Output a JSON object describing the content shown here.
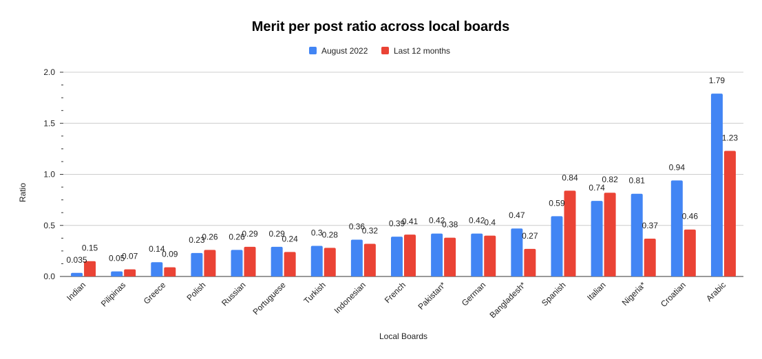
{
  "chart_data": {
    "type": "bar",
    "title": "Merit per post ratio across local boards",
    "xlabel": "Local Boards",
    "ylabel": "Ratio",
    "ylim": [
      0,
      2.0
    ],
    "yticks": [
      "0.0",
      "0.5",
      "1.0",
      "1.5",
      "2.0"
    ],
    "grid": true,
    "legend_position": "top-center",
    "categories": [
      "Indian",
      "Pilipinas",
      "Greece",
      "Polish",
      "Russian",
      "Portuguese",
      "Turkish",
      "Indonesian",
      "French",
      "Pakistan*",
      "German",
      "Bangladesh*",
      "Spanish",
      "Italian",
      "Nigeria*",
      "Croatian",
      "Arabic"
    ],
    "series": [
      {
        "name": "August 2022",
        "color": "#4285f4",
        "values": [
          0.035,
          0.05,
          0.14,
          0.23,
          0.26,
          0.29,
          0.3,
          0.36,
          0.39,
          0.42,
          0.42,
          0.47,
          0.59,
          0.74,
          0.81,
          0.94,
          1.79
        ],
        "labels": [
          "0.035",
          "0.05",
          "0.14",
          "0.23",
          "0.26",
          "0.29",
          "0.3",
          "0.36",
          "0.39",
          "0.42",
          "0.42",
          "0.47",
          "0.59",
          "0.74",
          "0.81",
          "0.94",
          "1.79"
        ]
      },
      {
        "name": "Last 12 months",
        "color": "#ea4335",
        "values": [
          0.15,
          0.07,
          0.09,
          0.26,
          0.29,
          0.24,
          0.28,
          0.32,
          0.41,
          0.38,
          0.4,
          0.27,
          0.84,
          0.82,
          0.37,
          0.46,
          1.23
        ],
        "labels": [
          "0.15",
          "0.07",
          "0.09",
          "0.26",
          "0.29",
          "0.24",
          "0.28",
          "0.32",
          "0.41",
          "0.38",
          "0.4",
          "0.27",
          "0.84",
          "0.82",
          "0.37",
          "0.46",
          "1.23"
        ]
      }
    ]
  }
}
